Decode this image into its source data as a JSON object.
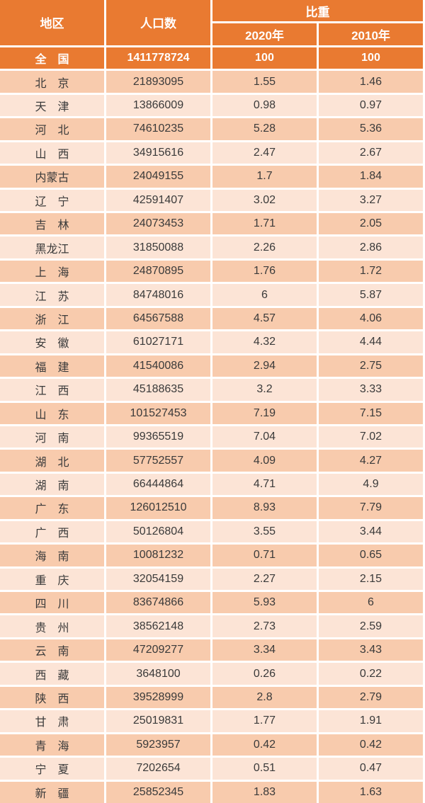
{
  "colors": {
    "header_bg": "#e97a31",
    "row_dark": "#f8cbad",
    "row_light": "#fce4d6",
    "text_dark": "#3a3a3a",
    "header_text": "#ffffff"
  },
  "chart_data": {
    "type": "table",
    "title": "",
    "columns": [
      "地区",
      "人口数",
      "比重 2020年",
      "比重 2010年"
    ],
    "header": {
      "region": "地区",
      "population": "人口数",
      "proportion": "比重",
      "year_2020": "2020年",
      "year_2010": "2010年"
    },
    "total": {
      "region": "全　国",
      "population": "1411778724",
      "share_2020": "100",
      "share_2010": "100"
    },
    "rows": [
      {
        "region": "北　京",
        "population": "21893095",
        "share_2020": "1.55",
        "share_2010": "1.46"
      },
      {
        "region": "天　津",
        "population": "13866009",
        "share_2020": "0.98",
        "share_2010": "0.97"
      },
      {
        "region": "河　北",
        "population": "74610235",
        "share_2020": "5.28",
        "share_2010": "5.36"
      },
      {
        "region": "山　西",
        "population": "34915616",
        "share_2020": "2.47",
        "share_2010": "2.67"
      },
      {
        "region": "内蒙古",
        "population": "24049155",
        "share_2020": "1.7",
        "share_2010": "1.84"
      },
      {
        "region": "辽　宁",
        "population": "42591407",
        "share_2020": "3.02",
        "share_2010": "3.27"
      },
      {
        "region": "吉　林",
        "population": "24073453",
        "share_2020": "1.71",
        "share_2010": "2.05"
      },
      {
        "region": "黑龙江",
        "population": "31850088",
        "share_2020": "2.26",
        "share_2010": "2.86"
      },
      {
        "region": "上　海",
        "population": "24870895",
        "share_2020": "1.76",
        "share_2010": "1.72"
      },
      {
        "region": "江　苏",
        "population": "84748016",
        "share_2020": "6",
        "share_2010": "5.87"
      },
      {
        "region": "浙　江",
        "population": "64567588",
        "share_2020": "4.57",
        "share_2010": "4.06"
      },
      {
        "region": "安　徽",
        "population": "61027171",
        "share_2020": "4.32",
        "share_2010": "4.44"
      },
      {
        "region": "福　建",
        "population": "41540086",
        "share_2020": "2.94",
        "share_2010": "2.75"
      },
      {
        "region": "江　西",
        "population": "45188635",
        "share_2020": "3.2",
        "share_2010": "3.33"
      },
      {
        "region": "山　东",
        "population": "101527453",
        "share_2020": "7.19",
        "share_2010": "7.15"
      },
      {
        "region": "河　南",
        "population": "99365519",
        "share_2020": "7.04",
        "share_2010": "7.02"
      },
      {
        "region": "湖　北",
        "population": "57752557",
        "share_2020": "4.09",
        "share_2010": "4.27"
      },
      {
        "region": "湖　南",
        "population": "66444864",
        "share_2020": "4.71",
        "share_2010": "4.9"
      },
      {
        "region": "广　东",
        "population": "126012510",
        "share_2020": "8.93",
        "share_2010": "7.79"
      },
      {
        "region": "广　西",
        "population": "50126804",
        "share_2020": "3.55",
        "share_2010": "3.44"
      },
      {
        "region": "海　南",
        "population": "10081232",
        "share_2020": "0.71",
        "share_2010": "0.65"
      },
      {
        "region": "重　庆",
        "population": "32054159",
        "share_2020": "2.27",
        "share_2010": "2.15"
      },
      {
        "region": "四　川",
        "population": "83674866",
        "share_2020": "5.93",
        "share_2010": "6"
      },
      {
        "region": "贵　州",
        "population": "38562148",
        "share_2020": "2.73",
        "share_2010": "2.59"
      },
      {
        "region": "云　南",
        "population": "47209277",
        "share_2020": "3.34",
        "share_2010": "3.43"
      },
      {
        "region": "西　藏",
        "population": "3648100",
        "share_2020": "0.26",
        "share_2010": "0.22"
      },
      {
        "region": "陕　西",
        "population": "39528999",
        "share_2020": "2.8",
        "share_2010": "2.79"
      },
      {
        "region": "甘　肃",
        "population": "25019831",
        "share_2020": "1.77",
        "share_2010": "1.91"
      },
      {
        "region": "青　海",
        "population": "5923957",
        "share_2020": "0.42",
        "share_2010": "0.42"
      },
      {
        "region": "宁　夏",
        "population": "7202654",
        "share_2020": "0.51",
        "share_2010": "0.47"
      },
      {
        "region": "新　疆",
        "population": "25852345",
        "share_2020": "1.83",
        "share_2010": "1.63"
      }
    ]
  }
}
